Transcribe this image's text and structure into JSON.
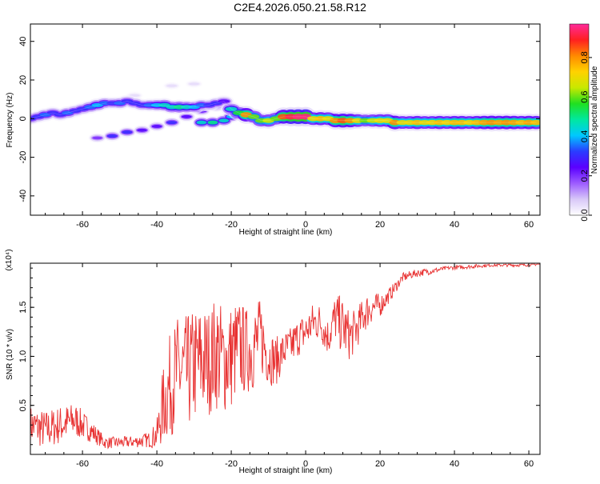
{
  "chart_data": [
    {
      "type": "heatmap",
      "title": "C2E4.2026.050.21.58.R12",
      "xlabel": "Height of straight line (km)",
      "ylabel": "Frequency (Hz)",
      "xlim": [
        -74,
        63
      ],
      "ylim": [
        -50,
        49
      ],
      "xticks": [
        -60,
        -40,
        -20,
        0,
        20,
        40,
        60
      ],
      "xtick_labels": [
        "-60",
        "-40",
        "-20",
        "0",
        "20",
        "40",
        "60"
      ],
      "yticks": [
        -40,
        -20,
        0,
        20,
        40
      ],
      "ytick_labels": [
        "-40",
        "-20",
        "0",
        "20",
        "40"
      ],
      "colorbar": {
        "label": "Normalized spectral amplitude",
        "range": [
          0,
          0.97
        ],
        "ticks": [
          0,
          0.2,
          0.4,
          0.6,
          0.8
        ],
        "tick_labels": [
          "0.0",
          "0.2",
          "0.4",
          "0.6",
          "0.8"
        ],
        "colors": [
          "#ffffff",
          "#d8c8f8",
          "#9d5cff",
          "#5b00ff",
          "#2a3cff",
          "#00c8ff",
          "#00e8a0",
          "#20e020",
          "#c8e800",
          "#ffd200",
          "#ff8a00",
          "#ff2020",
          "#ff2a9a"
        ]
      },
      "ridge": [
        {
          "x": -74,
          "f": 0,
          "a": 0.3
        },
        {
          "x": -72,
          "f": 1,
          "a": 0.3
        },
        {
          "x": -70,
          "f": 2,
          "a": 0.35
        },
        {
          "x": -68,
          "f": 3,
          "a": 0.3
        },
        {
          "x": -66,
          "f": 2,
          "a": 0.3
        },
        {
          "x": -64,
          "f": 3,
          "a": 0.35
        },
        {
          "x": -62,
          "f": 4,
          "a": 0.3
        },
        {
          "x": -60,
          "f": 5,
          "a": 0.3
        },
        {
          "x": -58,
          "f": 6,
          "a": 0.35
        },
        {
          "x": -56,
          "f": 7,
          "a": 0.4
        },
        {
          "x": -54,
          "f": 8,
          "a": 0.35
        },
        {
          "x": -52,
          "f": 8,
          "a": 0.3
        },
        {
          "x": -50,
          "f": 8,
          "a": 0.35
        },
        {
          "x": -48,
          "f": 9,
          "a": 0.3
        },
        {
          "x": -46,
          "f": 8,
          "a": 0.3
        },
        {
          "x": -44,
          "f": 7,
          "a": 0.3
        },
        {
          "x": -42,
          "f": 7,
          "a": 0.35
        },
        {
          "x": -40,
          "f": 7,
          "a": 0.4
        },
        {
          "x": -38,
          "f": 7,
          "a": 0.45
        },
        {
          "x": -36,
          "f": 6,
          "a": 0.45
        },
        {
          "x": -34,
          "f": 6,
          "a": 0.5
        },
        {
          "x": -32,
          "f": 6,
          "a": 0.45
        },
        {
          "x": -30,
          "f": 6,
          "a": 0.4
        },
        {
          "x": -28,
          "f": 7,
          "a": 0.35
        },
        {
          "x": -26,
          "f": 7,
          "a": 0.3
        },
        {
          "x": -24,
          "f": 8,
          "a": 0.3
        },
        {
          "x": -22,
          "f": 9,
          "a": 0.25
        },
        {
          "x": -20,
          "f": 5,
          "a": 0.45
        },
        {
          "x": -18,
          "f": 3,
          "a": 0.55
        },
        {
          "x": -16,
          "f": 2,
          "a": 0.8
        },
        {
          "x": -14,
          "f": 1,
          "a": 0.6
        },
        {
          "x": -12,
          "f": -1,
          "a": 0.6
        },
        {
          "x": -10,
          "f": -1,
          "a": 0.65
        },
        {
          "x": -8,
          "f": 0,
          "a": 0.6
        },
        {
          "x": -6,
          "f": 1,
          "a": 0.85
        },
        {
          "x": -4,
          "f": 1,
          "a": 0.92
        },
        {
          "x": -2,
          "f": 1,
          "a": 0.95
        },
        {
          "x": 0,
          "f": 1,
          "a": 0.95
        },
        {
          "x": 2,
          "f": 0,
          "a": 0.7
        },
        {
          "x": 4,
          "f": 0,
          "a": 0.75
        },
        {
          "x": 6,
          "f": 0,
          "a": 0.7
        },
        {
          "x": 8,
          "f": -1,
          "a": 0.8
        },
        {
          "x": 10,
          "f": -1,
          "a": 0.85
        },
        {
          "x": 12,
          "f": -1,
          "a": 0.8
        },
        {
          "x": 14,
          "f": -1,
          "a": 0.7
        },
        {
          "x": 16,
          "f": -1,
          "a": 0.6
        },
        {
          "x": 18,
          "f": -1,
          "a": 0.65
        },
        {
          "x": 20,
          "f": -1,
          "a": 0.7
        },
        {
          "x": 22,
          "f": -1,
          "a": 0.7
        },
        {
          "x": 24,
          "f": -2,
          "a": 0.8
        },
        {
          "x": 26,
          "f": -2,
          "a": 0.7
        },
        {
          "x": 28,
          "f": -2,
          "a": 0.7
        },
        {
          "x": 30,
          "f": -2,
          "a": 0.75
        },
        {
          "x": 32,
          "f": -2,
          "a": 0.7
        },
        {
          "x": 34,
          "f": -2,
          "a": 0.72
        },
        {
          "x": 36,
          "f": -2,
          "a": 0.75
        },
        {
          "x": 38,
          "f": -2,
          "a": 0.72
        },
        {
          "x": 40,
          "f": -2,
          "a": 0.75
        },
        {
          "x": 42,
          "f": -2,
          "a": 0.75
        },
        {
          "x": 44,
          "f": -2,
          "a": 0.72
        },
        {
          "x": 46,
          "f": -2,
          "a": 0.75
        },
        {
          "x": 48,
          "f": -2,
          "a": 0.78
        },
        {
          "x": 50,
          "f": -2,
          "a": 0.8
        },
        {
          "x": 52,
          "f": -2,
          "a": 0.78
        },
        {
          "x": 54,
          "f": -2,
          "a": 0.8
        },
        {
          "x": 56,
          "f": -2,
          "a": 0.78
        },
        {
          "x": 58,
          "f": -2,
          "a": 0.75
        },
        {
          "x": 60,
          "f": -2,
          "a": 0.78
        },
        {
          "x": 62,
          "f": -2,
          "a": 0.75
        }
      ],
      "secondary_branches": [
        [
          {
            "x": -56,
            "f": -10,
            "a": 0.2
          },
          {
            "x": -52,
            "f": -9,
            "a": 0.3
          },
          {
            "x": -48,
            "f": -7,
            "a": 0.3
          },
          {
            "x": -44,
            "f": -6,
            "a": 0.25
          },
          {
            "x": -40,
            "f": -4,
            "a": 0.25
          },
          {
            "x": -36,
            "f": -2,
            "a": 0.3
          },
          {
            "x": -32,
            "f": 1,
            "a": 0.25
          },
          {
            "x": -28,
            "f": 4,
            "a": 0.25
          },
          {
            "x": -24,
            "f": 6,
            "a": 0.2
          }
        ],
        [
          {
            "x": -28,
            "f": -2,
            "a": 0.45
          },
          {
            "x": -25,
            "f": -2,
            "a": 0.5
          },
          {
            "x": -22,
            "f": -1,
            "a": 0.45
          },
          {
            "x": -20,
            "f": 1,
            "a": 0.4
          }
        ],
        [
          {
            "x": -46,
            "f": 12,
            "a": 0.05
          },
          {
            "x": -36,
            "f": 17,
            "a": 0.05
          },
          {
            "x": -30,
            "f": 18,
            "a": 0.05
          }
        ]
      ]
    },
    {
      "type": "line",
      "xlabel": "Height of straight line (km)",
      "ylabel": "SNR (10 * v/v)",
      "y_multiplier": "(x10⁴)",
      "xlim": [
        -74,
        63
      ],
      "ylim": [
        0,
        1.95
      ],
      "xticks": [
        -60,
        -40,
        -20,
        0,
        20,
        40,
        60
      ],
      "xtick_labels": [
        "-60",
        "-40",
        "-20",
        "0",
        "20",
        "40",
        "60"
      ],
      "yticks": [
        0.5,
        1.0,
        1.5
      ],
      "ytick_labels": [
        "0.5",
        "1.0",
        "1.5"
      ],
      "color": "#e83232",
      "series": [
        {
          "x": [
            -74,
            -70,
            -66,
            -62,
            -58,
            -54,
            -50,
            -46,
            -42,
            -40,
            -38,
            -36,
            -34,
            -32,
            -30,
            -28,
            -26,
            -24,
            -22,
            -20,
            -18,
            -16,
            -14,
            -12,
            -10,
            -8,
            -6,
            -4,
            -2,
            0,
            2,
            4,
            6,
            8,
            10,
            12,
            14,
            16,
            18,
            20,
            22,
            24,
            26,
            28,
            30,
            34,
            38,
            42,
            46,
            50,
            54,
            58,
            62
          ],
          "y": [
            0.3,
            0.25,
            0.3,
            0.35,
            0.25,
            0.12,
            0.12,
            0.13,
            0.15,
            0.2,
            0.55,
            0.75,
            0.85,
            0.82,
            0.9,
            0.95,
            0.95,
            1.05,
            0.95,
            1.0,
            1.1,
            1.05,
            1.1,
            1.2,
            1.0,
            0.95,
            1.05,
            1.1,
            1.2,
            1.25,
            1.35,
            1.35,
            1.2,
            1.4,
            1.3,
            1.2,
            1.3,
            1.45,
            1.5,
            1.52,
            1.6,
            1.7,
            1.8,
            1.83,
            1.85,
            1.87,
            1.9,
            1.91,
            1.92,
            1.93,
            1.93,
            1.93,
            1.94
          ],
          "noise": [
            0.2,
            0.2,
            0.2,
            0.18,
            0.12,
            0.06,
            0.06,
            0.06,
            0.08,
            0.15,
            0.45,
            0.55,
            0.6,
            0.6,
            0.6,
            0.6,
            0.55,
            0.6,
            0.55,
            0.55,
            0.5,
            0.45,
            0.45,
            0.4,
            0.3,
            0.25,
            0.2,
            0.2,
            0.2,
            0.2,
            0.2,
            0.2,
            0.2,
            0.25,
            0.3,
            0.25,
            0.2,
            0.2,
            0.15,
            0.12,
            0.08,
            0.06,
            0.05,
            0.04,
            0.04,
            0.03,
            0.02,
            0.02,
            0.02,
            0.015,
            0.015,
            0.015,
            0.015
          ]
        }
      ]
    }
  ]
}
